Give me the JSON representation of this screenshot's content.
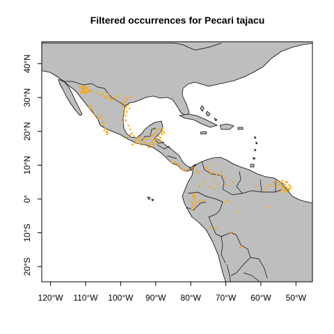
{
  "title": "Filtered occurrences for Pecari tajacu",
  "colors": {
    "land": "#bebebe",
    "border": "#000000",
    "occurrence": "#ffa500",
    "water": "#ffffff"
  },
  "map": {
    "lon_range": [
      -122.5,
      -45.3
    ],
    "lat_range": [
      -24.5,
      46.5
    ],
    "x_ticks": [
      {
        "lon": -120,
        "label": "120°W"
      },
      {
        "lon": -110,
        "label": "110°W"
      },
      {
        "lon": -100,
        "label": "100°W"
      },
      {
        "lon": -90,
        "label": "90°W"
      },
      {
        "lon": -80,
        "label": "80°W"
      },
      {
        "lon": -70,
        "label": "70°W"
      },
      {
        "lon": -60,
        "label": "60°W"
      },
      {
        "lon": -50,
        "label": "50°W"
      }
    ],
    "y_ticks": [
      {
        "lat": 40,
        "label": "40°N"
      },
      {
        "lat": 30,
        "label": "30°N"
      },
      {
        "lat": 20,
        "label": "20°N"
      },
      {
        "lat": 10,
        "label": "10°N"
      },
      {
        "lat": 0,
        "label": "0°"
      },
      {
        "lat": -10,
        "label": "10°S"
      },
      {
        "lat": -20,
        "label": "20°S"
      }
    ],
    "occurrences": [
      [
        -111.1,
        33.0
      ],
      [
        -110.9,
        32.6
      ],
      [
        -110.7,
        32.2
      ],
      [
        -110.4,
        31.8
      ],
      [
        -110.9,
        31.5
      ],
      [
        -111.2,
        32.0
      ],
      [
        -110.5,
        32.7
      ],
      [
        -109.9,
        32.4
      ],
      [
        -109.6,
        31.9
      ],
      [
        -109.1,
        32.1
      ],
      [
        -108.8,
        31.7
      ],
      [
        -110.0,
        31.3
      ],
      [
        -111.3,
        31.4
      ],
      [
        -110.2,
        33.1
      ],
      [
        -109.4,
        32.8
      ],
      [
        -111.6,
        33.3
      ],
      [
        -110.6,
        33.4
      ],
      [
        -109.7,
        31.5
      ],
      [
        -108.5,
        31.9
      ],
      [
        -110.0,
        32.9
      ],
      [
        -106.5,
        31.5
      ],
      [
        -105.6,
        30.8
      ],
      [
        -104.6,
        30.3
      ],
      [
        -103.8,
        30.0
      ],
      [
        -103.0,
        29.4
      ],
      [
        -102.5,
        29.6
      ],
      [
        -101.7,
        30.0
      ],
      [
        -103.4,
        31.0
      ],
      [
        -104.2,
        29.8
      ],
      [
        -105.0,
        31.2
      ],
      [
        -99.8,
        28.7
      ],
      [
        -99.2,
        28.3
      ],
      [
        -98.6,
        28.8
      ],
      [
        -97.9,
        27.8
      ],
      [
        -98.3,
        27.2
      ],
      [
        -97.5,
        26.8
      ],
      [
        -98.9,
        26.5
      ],
      [
        -99.6,
        27.6
      ],
      [
        -98.1,
        29.3
      ],
      [
        -98.3,
        25.8
      ],
      [
        -99.0,
        25.3
      ],
      [
        -98.6,
        24.6
      ],
      [
        -99.4,
        24.2
      ],
      [
        -98.5,
        23.3
      ],
      [
        -99.3,
        22.6
      ],
      [
        -100.7,
        30.5
      ],
      [
        -97.3,
        30.3
      ],
      [
        -98.5,
        29.9
      ],
      [
        -105.7,
        24.2
      ],
      [
        -106.3,
        23.7
      ],
      [
        -105.2,
        22.5
      ],
      [
        -104.8,
        21.8
      ],
      [
        -104.4,
        20.8
      ],
      [
        -104.7,
        20.2
      ],
      [
        -103.7,
        19.6
      ],
      [
        -103.9,
        19.2
      ],
      [
        -104.0,
        19.9
      ],
      [
        -105.5,
        24.8
      ],
      [
        -107.5,
        24.9
      ],
      [
        -108.0,
        26.4
      ],
      [
        -108.6,
        27.6
      ],
      [
        -109.0,
        26.9
      ],
      [
        -96.8,
        19.4
      ],
      [
        -96.2,
        18.6
      ],
      [
        -95.2,
        18.2
      ],
      [
        -94.2,
        17.2
      ],
      [
        -93.1,
        16.6
      ],
      [
        -92.3,
        16.4
      ],
      [
        -92.0,
        15.3
      ],
      [
        -91.6,
        15.9
      ],
      [
        -91.0,
        16.8
      ],
      [
        -90.2,
        17.6
      ],
      [
        -89.6,
        17.8
      ],
      [
        -89.2,
        18.6
      ],
      [
        -88.7,
        18.1
      ],
      [
        -88.1,
        19.1
      ],
      [
        -88.4,
        19.7
      ],
      [
        -87.9,
        20.1
      ],
      [
        -88.9,
        20.8
      ],
      [
        -89.7,
        20.4
      ],
      [
        -90.3,
        19.5
      ],
      [
        -90.8,
        18.8
      ],
      [
        -91.3,
        18.5
      ],
      [
        -92.6,
        17.6
      ],
      [
        -93.4,
        17.9
      ],
      [
        -94.3,
        18.1
      ],
      [
        -95.0,
        17.5
      ],
      [
        -96.1,
        17.3
      ],
      [
        -96.6,
        16.1
      ],
      [
        -95.6,
        16.5
      ],
      [
        -94.7,
        16.4
      ],
      [
        -90.6,
        16.1
      ],
      [
        -89.9,
        16.7
      ],
      [
        -88.6,
        17.2
      ],
      [
        -87.6,
        19.6
      ],
      [
        -88.0,
        20.9
      ],
      [
        -90.9,
        17.5
      ],
      [
        -97.8,
        21.7
      ],
      [
        -97.3,
        20.6
      ],
      [
        -98.1,
        18.2
      ],
      [
        -97.2,
        19.0
      ],
      [
        -94.0,
        16.0
      ],
      [
        -83.9,
        10.4
      ],
      [
        -83.6,
        10.1
      ],
      [
        -83.2,
        9.3
      ],
      [
        -82.6,
        8.7
      ],
      [
        -82.0,
        8.5
      ],
      [
        -80.4,
        8.9
      ],
      [
        -79.6,
        9.2
      ],
      [
        -78.2,
        8.3
      ],
      [
        -77.6,
        7.6
      ],
      [
        -85.5,
        10.8
      ],
      [
        -84.5,
        10.9
      ],
      [
        -81.5,
        8.2
      ],
      [
        -75.5,
        9.2
      ],
      [
        -74.8,
        8.6
      ],
      [
        -74.3,
        7.7
      ],
      [
        -73.6,
        7.8
      ],
      [
        -72.6,
        7.3
      ],
      [
        -73.0,
        6.1
      ],
      [
        -71.6,
        6.9
      ],
      [
        -76.3,
        5.2
      ],
      [
        -74.5,
        3.6
      ],
      [
        -73.1,
        3.0
      ],
      [
        -72.2,
        4.4
      ],
      [
        -69.9,
        4.3
      ],
      [
        -70.3,
        6.2
      ],
      [
        -71.3,
        8.1
      ],
      [
        -77.6,
        3.9
      ],
      [
        -73.7,
        10.0
      ],
      [
        -67.9,
        5.0
      ],
      [
        -79.4,
        0.9
      ],
      [
        -79.1,
        0.1
      ],
      [
        -79.8,
        -0.5
      ],
      [
        -79.5,
        -1.2
      ],
      [
        -78.8,
        -1.9
      ],
      [
        -79.6,
        -2.4
      ],
      [
        -79.0,
        0.6
      ],
      [
        -78.3,
        -1.0
      ],
      [
        -77.5,
        -0.7
      ],
      [
        -76.6,
        -0.4
      ],
      [
        -78.9,
        1.6
      ],
      [
        -79.7,
        -3.1
      ],
      [
        -57.6,
        4.3
      ],
      [
        -56.9,
        3.9
      ],
      [
        -55.6,
        3.6
      ],
      [
        -54.8,
        4.2
      ],
      [
        -54.2,
        3.9
      ],
      [
        -53.8,
        3.5
      ],
      [
        -53.3,
        3.1
      ],
      [
        -52.6,
        3.5
      ],
      [
        -52.2,
        3.0
      ],
      [
        -53.0,
        4.3
      ],
      [
        -53.6,
        4.6
      ],
      [
        -54.5,
        4.9
      ],
      [
        -55.1,
        5.2
      ],
      [
        -53.9,
        5.4
      ],
      [
        -52.8,
        5.1
      ],
      [
        -51.9,
        4.1
      ],
      [
        -52.0,
        2.6
      ],
      [
        -51.5,
        3.7
      ],
      [
        -53.2,
        2.5
      ],
      [
        -52.6,
        2.1
      ],
      [
        -54.0,
        2.7
      ],
      [
        -52.4,
        4.9
      ],
      [
        -51.7,
        3.1
      ],
      [
        -56.3,
        4.8
      ],
      [
        -58.4,
        3.6
      ],
      [
        -59.2,
        2.6
      ],
      [
        -61.4,
        3.7
      ],
      [
        -54.5,
        2.2
      ],
      [
        -57.8,
        -2.5
      ],
      [
        -69.4,
        -0.5
      ],
      [
        -66.6,
        -4.0
      ],
      [
        -72.6,
        -8.6
      ],
      [
        -74.6,
        -8.6
      ],
      [
        -68.6,
        -10.1
      ],
      [
        -65.8,
        -14.3
      ],
      [
        -70.5,
        -1.0
      ]
    ]
  }
}
